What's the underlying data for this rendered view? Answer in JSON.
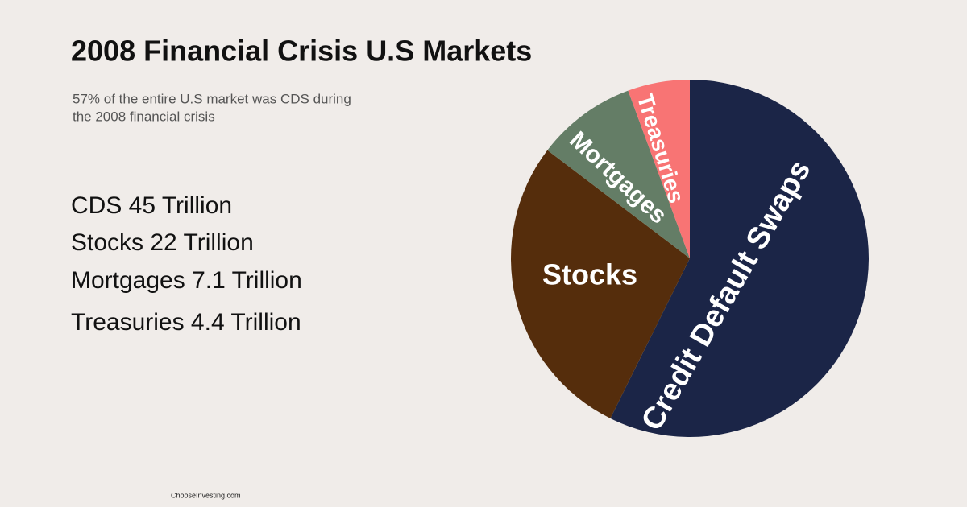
{
  "chart_data": {
    "type": "pie",
    "title": "2008 Financial Crisis U.S Markets",
    "subtitle": [
      "57% of the entire U.S market was CDS during",
      "the 2008 financial crisis"
    ],
    "categories": [
      "Credit Default Swaps",
      "Stocks",
      "Mortgages",
      "Treasuries"
    ],
    "values": [
      45,
      22,
      7.1,
      4.4
    ],
    "value_labels": [
      "CDS 45 Trillion",
      "Stocks 22 Trillion",
      "Mortgages 7.1 Trillion",
      "Treasuries 4.4 Trillion"
    ],
    "colors": [
      "#1b2547",
      "#552d0c",
      "#647d66",
      "#f87474"
    ],
    "source": "ChooseInvesting.com"
  }
}
